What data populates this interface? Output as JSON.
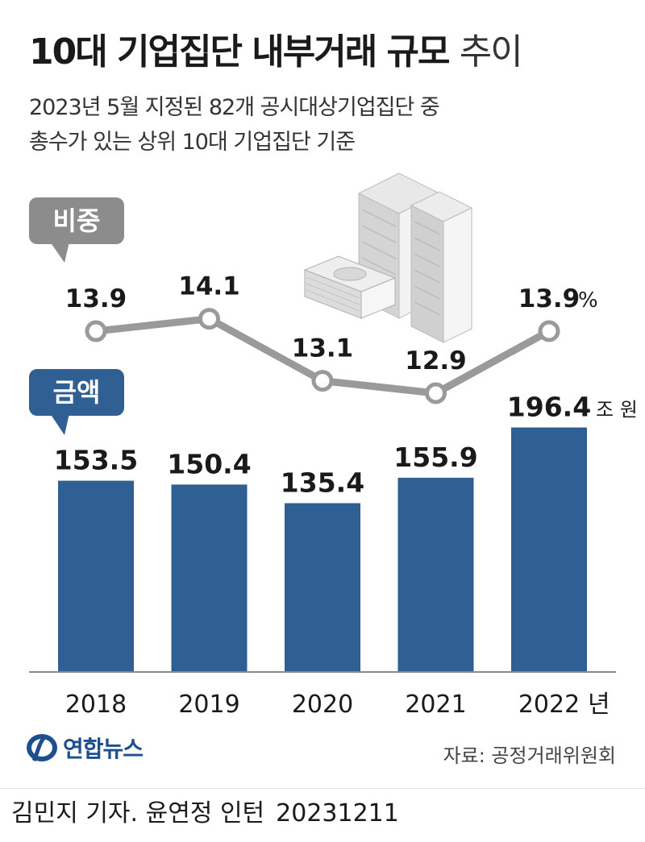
{
  "title": {
    "main": "10대 기업집단 내부거래 규모",
    "light": "추이"
  },
  "subtitle": {
    "line1": "2023년 5월 지정된 82개 공시대상기업집단 중",
    "line2": "총수가 있는 상위 10대 기업집단 기준"
  },
  "chart_data": {
    "type": "bar",
    "categories": [
      "2018",
      "2019",
      "2020",
      "2021",
      "2022"
    ],
    "x_unit": "년",
    "bar_series": {
      "name": "금액",
      "values": [
        153.5,
        150.4,
        135.4,
        155.9,
        196.4
      ],
      "unit": "조 원"
    },
    "line_series": {
      "name": "비중",
      "values": [
        13.9,
        14.1,
        13.1,
        12.9,
        13.9
      ],
      "unit": "%"
    },
    "highlight_index": 4
  },
  "labels": {
    "bar_label": "금액",
    "line_label": "비중"
  },
  "colors": {
    "bar": "#2f5f93",
    "line": "#9a9a9a",
    "bubble_gray": "#8c8c8c",
    "bubble_blue": "#2f5f93"
  },
  "logo": {
    "name": "연합뉴스"
  },
  "source": "자료: 공정거래위원회",
  "credit": {
    "byline": "김민지 기자. 윤연정 인턴",
    "date": "20231211"
  }
}
